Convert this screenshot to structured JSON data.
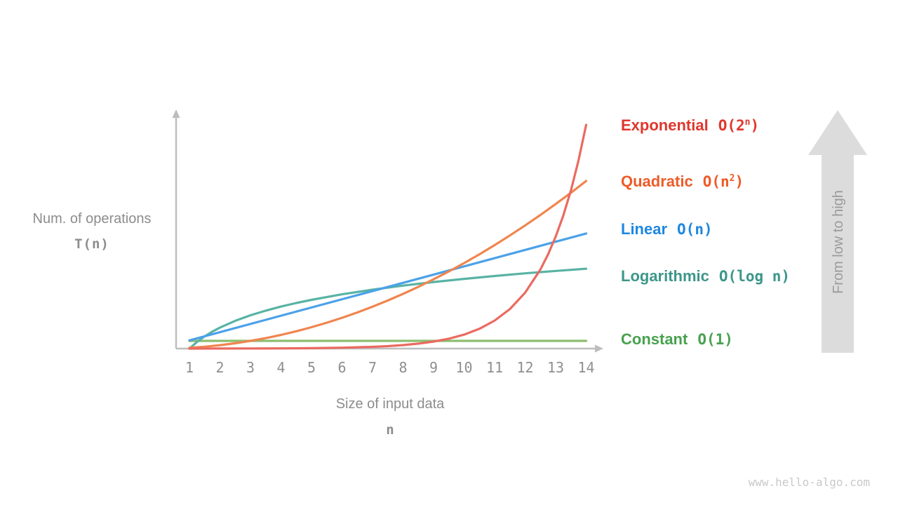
{
  "chart_data": {
    "type": "line",
    "title": "",
    "ylabel": {
      "line1": "Num. of operations",
      "line2": "T(n)"
    },
    "xlabel": {
      "line1": "Size of input data",
      "line2": "n"
    },
    "x_ticks": [
      "1",
      "2",
      "3",
      "4",
      "5",
      "6",
      "7",
      "8",
      "9",
      "10",
      "11",
      "12",
      "13",
      "14"
    ],
    "axes": {
      "x_range": [
        1,
        14
      ],
      "y_norm_range": [
        0,
        1
      ],
      "grid": false,
      "arrowheads": true
    },
    "legend_position": "right",
    "series": [
      {
        "id": "exponential",
        "name": "Exponential",
        "formula_prefix": "O(2",
        "formula_sup": "n",
        "formula_suffix": ")",
        "label_color": "#e0362c",
        "curve_color": "#ea6a60",
        "points": [
          [
            1,
            0.0001
          ],
          [
            2,
            0.0002
          ],
          [
            3,
            0.0005
          ],
          [
            4,
            0.0009
          ],
          [
            5,
            0.0018
          ],
          [
            6,
            0.0037
          ],
          [
            7,
            0.0074
          ],
          [
            7.5,
            0.0104
          ],
          [
            8,
            0.0147
          ],
          [
            8.5,
            0.0208
          ],
          [
            9,
            0.0294
          ],
          [
            9.5,
            0.0416
          ],
          [
            10,
            0.0588
          ],
          [
            10.5,
            0.0832
          ],
          [
            11,
            0.1176
          ],
          [
            11.5,
            0.1663
          ],
          [
            12,
            0.2352
          ],
          [
            12.5,
            0.3327
          ],
          [
            12.75,
            0.3956
          ],
          [
            13,
            0.4704
          ],
          [
            13.25,
            0.5594
          ],
          [
            13.5,
            0.6653
          ],
          [
            13.75,
            0.7913
          ],
          [
            14,
            0.941
          ]
        ]
      },
      {
        "id": "quadratic",
        "name": "Quadratic",
        "formula_prefix": "O(n",
        "formula_sup": "2",
        "formula_suffix": ")",
        "label_color": "#ee5b27",
        "curve_color": "#f0854e",
        "points": [
          [
            1,
            0.0036
          ],
          [
            1.5,
            0.0081
          ],
          [
            2,
            0.0144
          ],
          [
            2.5,
            0.0225
          ],
          [
            3,
            0.0324
          ],
          [
            3.5,
            0.0441
          ],
          [
            4,
            0.0576
          ],
          [
            4.5,
            0.0728
          ],
          [
            5,
            0.0899
          ],
          [
            5.5,
            0.1088
          ],
          [
            6,
            0.1295
          ],
          [
            6.5,
            0.152
          ],
          [
            7,
            0.1763
          ],
          [
            7.5,
            0.2023
          ],
          [
            8,
            0.2302
          ],
          [
            8.5,
            0.2599
          ],
          [
            9,
            0.2913
          ],
          [
            9.5,
            0.3246
          ],
          [
            10,
            0.3597
          ],
          [
            10.5,
            0.3966
          ],
          [
            11,
            0.4352
          ],
          [
            11.5,
            0.4757
          ],
          [
            12,
            0.518
          ],
          [
            12.5,
            0.562
          ],
          [
            13,
            0.6079
          ],
          [
            13.5,
            0.6556
          ],
          [
            14,
            0.705
          ]
        ]
      },
      {
        "id": "linear",
        "name": "Linear",
        "formula_prefix": "O(n)",
        "formula_sup": "",
        "formula_suffix": "",
        "label_color": "#1e87e0",
        "curve_color": "#4ba1e8",
        "points": [
          [
            1,
            0.0346
          ],
          [
            14,
            0.484
          ]
        ]
      },
      {
        "id": "logarithmic",
        "name": "Logarithmic",
        "formula_prefix": "O(log n)",
        "formula_sup": "",
        "formula_suffix": "",
        "label_color": "#3d968a",
        "curve_color": "#58b3a5",
        "points": [
          [
            1,
            0
          ],
          [
            1.25,
            0.0284
          ],
          [
            1.5,
            0.0517
          ],
          [
            1.75,
            0.0713
          ],
          [
            2,
            0.0883
          ],
          [
            2.5,
            0.1167
          ],
          [
            3,
            0.14
          ],
          [
            3.5,
            0.1596
          ],
          [
            4,
            0.1766
          ],
          [
            4.5,
            0.1916
          ],
          [
            5,
            0.205
          ],
          [
            6,
            0.2283
          ],
          [
            7,
            0.2479
          ],
          [
            8,
            0.2649
          ],
          [
            9,
            0.2799
          ],
          [
            10,
            0.2933
          ],
          [
            11,
            0.3054
          ],
          [
            12,
            0.3165
          ],
          [
            13,
            0.3266
          ],
          [
            14,
            0.336
          ]
        ]
      },
      {
        "id": "constant",
        "name": "Constant",
        "formula_prefix": "O(1)",
        "formula_sup": "",
        "formula_suffix": "",
        "label_color": "#47a14f",
        "curve_color": "#8cbd70",
        "points": [
          [
            1,
            0.0324
          ],
          [
            14,
            0.0324
          ]
        ]
      }
    ],
    "low_to_high_arrow": {
      "label": "From low to high"
    },
    "watermark": "www.hello-algo.com",
    "palette": {
      "axis": "#bdbdbd",
      "tick": "#8f8f8f",
      "label": "#8c8c8c",
      "arrow-fill": "#dcdcdc",
      "arrow-text": "#9b9b9b",
      "watermark": "#c9c9c9",
      "bg": "#ffffff"
    }
  }
}
